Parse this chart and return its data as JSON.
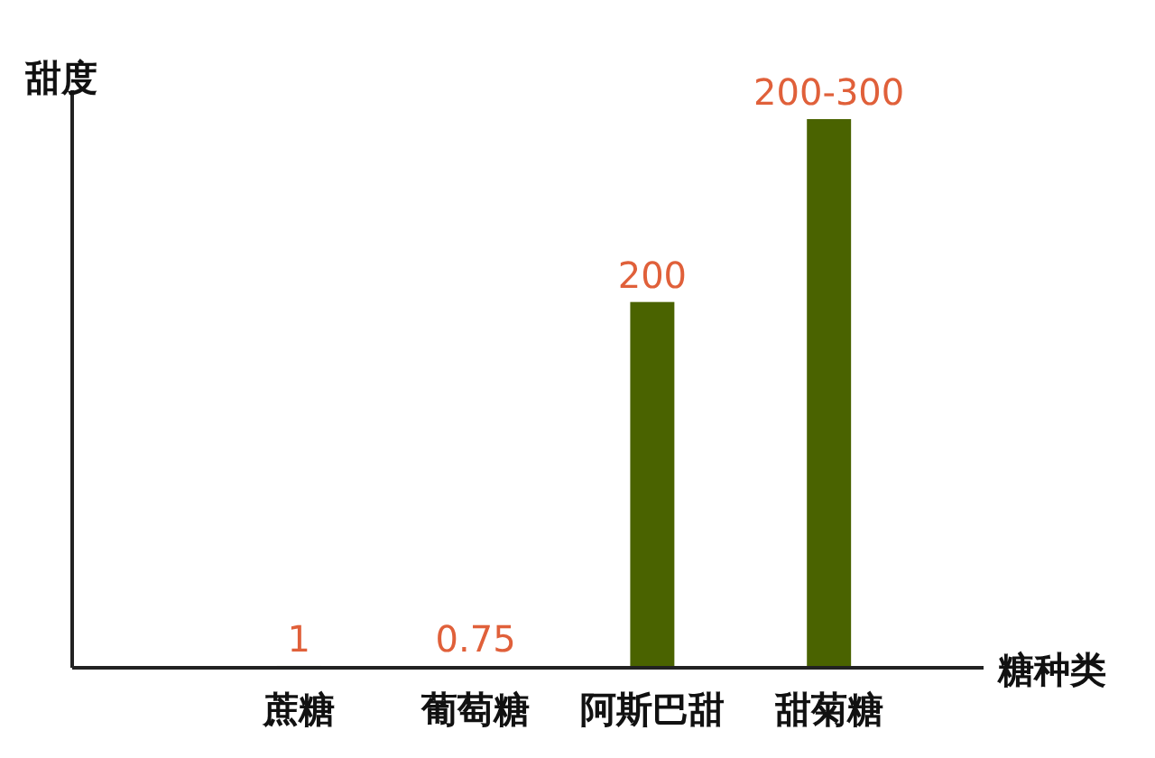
{
  "chart_data": {
    "type": "bar",
    "xlabel": "糖种类",
    "ylabel": "甜度",
    "categories": [
      "蔗糖",
      "葡萄糖",
      "阿斯巴甜",
      "甜菊糖"
    ],
    "values": [
      1,
      0.75,
      200,
      300
    ],
    "value_labels": [
      "1",
      "0.75",
      "200",
      "200-300"
    ],
    "color": "#4a6300"
  }
}
